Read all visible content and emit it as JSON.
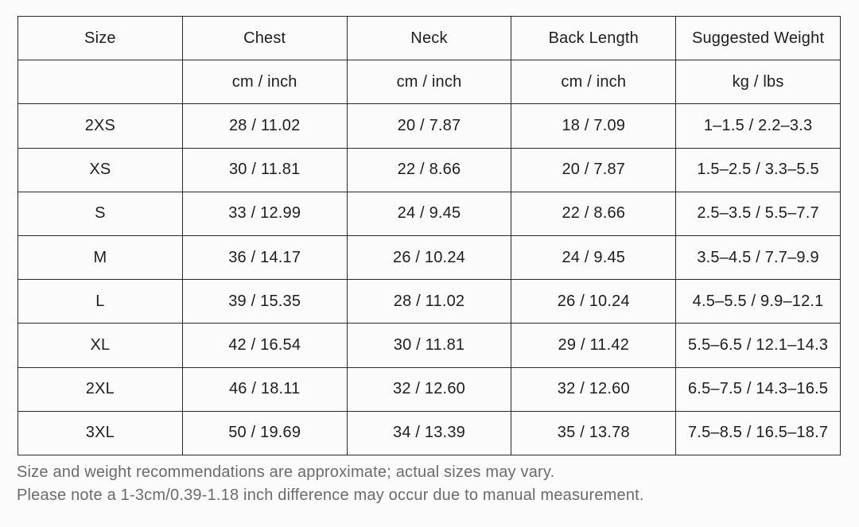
{
  "table": {
    "headers": [
      "Size",
      "Chest",
      "Neck",
      "Back Length",
      "Suggested Weight"
    ],
    "units": [
      "",
      "cm / inch",
      "cm / inch",
      "cm / inch",
      "kg / lbs"
    ],
    "rows": [
      [
        "2XS",
        "28 / 11.02",
        "20 / 7.87",
        "18 / 7.09",
        "1–1.5 / 2.2–3.3"
      ],
      [
        "XS",
        "30 / 11.81",
        "22 / 8.66",
        "20 / 7.87",
        "1.5–2.5 / 3.3–5.5"
      ],
      [
        "S",
        "33 / 12.99",
        "24 / 9.45",
        "22 / 8.66",
        "2.5–3.5 / 5.5–7.7"
      ],
      [
        "M",
        "36 / 14.17",
        "26 / 10.24",
        "24 / 9.45",
        "3.5–4.5 / 7.7–9.9"
      ],
      [
        "L",
        "39 / 15.35",
        "28 / 11.02",
        "26 / 10.24",
        "4.5–5.5 / 9.9–12.1"
      ],
      [
        "XL",
        "42 / 16.54",
        "30 / 11.81",
        "29 / 11.42",
        "5.5–6.5 / 12.1–14.3"
      ],
      [
        "2XL",
        "46 / 18.11",
        "32 / 12.60",
        "32 / 12.60",
        "6.5–7.5 / 14.3–16.5"
      ],
      [
        "3XL",
        "50 / 19.69",
        "34 / 13.39",
        "35 / 13.78",
        "7.5–8.5 / 16.5–18.7"
      ]
    ]
  },
  "notes": [
    "Size and weight recommendations are approximate; actual sizes may vary.",
    "Please note a 1-3cm/0.39-1.18 inch difference may occur due to manual measurement."
  ]
}
